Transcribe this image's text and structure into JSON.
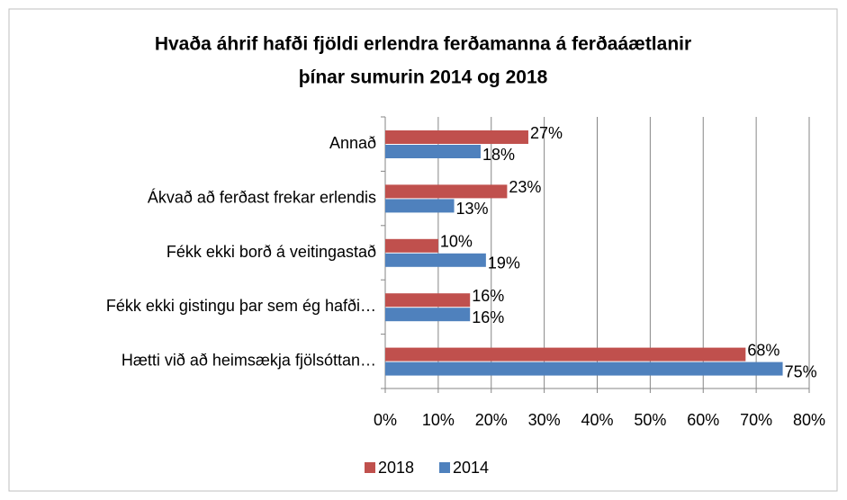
{
  "chart_data": {
    "type": "hbar",
    "title": [
      "Hvaða áhrif hafði fjöldi erlendra ferðamanna á ferðaáætlanir",
      "þínar sumurin 2014 og 2018"
    ],
    "categories": [
      "Annað",
      "Ákvað að ferðast frekar erlendis",
      "Fékk ekki borð á veitingastað",
      "Fékk ekki gistingu þar sem ég hafði…",
      "Hætti við að heimsækja fjölsóttan…"
    ],
    "series": [
      {
        "name": "2018",
        "color": "#c0504d",
        "values": [
          27,
          23,
          10,
          16,
          68
        ],
        "value_labels": [
          "27%",
          "23%",
          "10%",
          "16%",
          "68%"
        ]
      },
      {
        "name": "2014",
        "color": "#4f81bd",
        "values": [
          18,
          13,
          19,
          16,
          75
        ],
        "value_labels": [
          "18%",
          "13%",
          "19%",
          "16%",
          "75%"
        ]
      }
    ],
    "xlim": [
      0,
      80
    ],
    "xticks": [
      {
        "value": 0,
        "label": "0%"
      },
      {
        "value": 10,
        "label": "10%"
      },
      {
        "value": 20,
        "label": "20%"
      },
      {
        "value": 30,
        "label": "30%"
      },
      {
        "value": 40,
        "label": "40%"
      },
      {
        "value": 50,
        "label": "50%"
      },
      {
        "value": 60,
        "label": "60%"
      },
      {
        "value": 70,
        "label": "70%"
      },
      {
        "value": 80,
        "label": "80%"
      }
    ],
    "grid": true,
    "legend": "bottom"
  }
}
